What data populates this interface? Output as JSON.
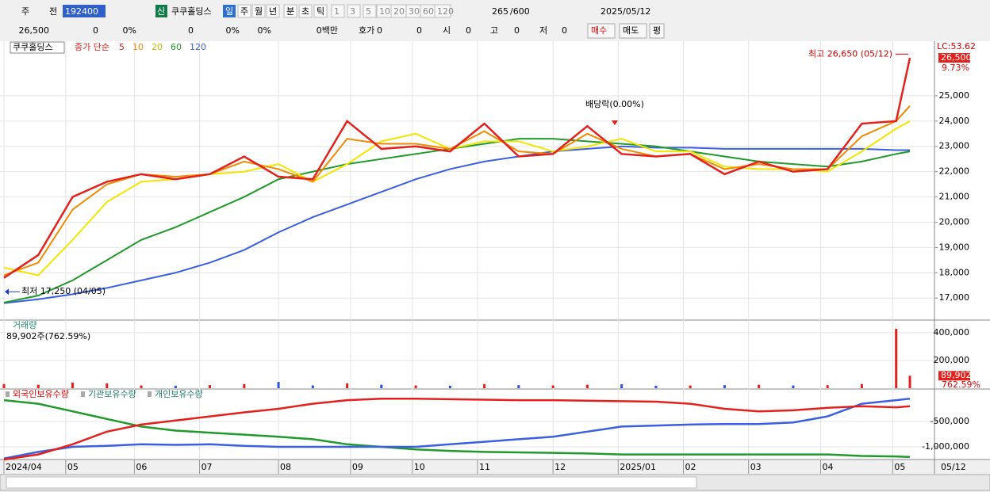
{
  "toolbar": {
    "row1": [
      "주",
      "전",
      "192400",
      "신",
      "쿠쿠홀딩스",
      "일",
      "주",
      "월",
      "년",
      "분",
      "초",
      "틱",
      "1",
      "3",
      "5",
      "10",
      "20",
      "30",
      "60",
      "120",
      "265",
      "/600",
      "2025/05/12"
    ],
    "row2": [
      "26,500",
      "0",
      "0%",
      "0",
      "0%",
      "0%",
      "0백만",
      "호가",
      "0",
      "0",
      "시",
      "0",
      "고",
      "0",
      "저",
      "0",
      "매수",
      "매도",
      "평"
    ]
  },
  "chart_data": [
    {
      "type": "line",
      "name": "쿠쿠홀딩스",
      "legend_title": "종가 단순",
      "x": [
        0,
        10,
        20,
        30,
        40,
        50,
        60,
        70,
        80,
        90,
        100,
        110,
        120,
        130,
        140,
        150,
        160,
        170,
        180,
        190,
        200,
        210,
        220,
        230,
        240,
        250,
        260,
        264
      ],
      "xlim": [
        0,
        264
      ],
      "ylim": [
        16160,
        27160
      ],
      "yticks": [
        {
          "value": 17000,
          "label": "17,000"
        },
        {
          "value": 18000,
          "label": "18,000"
        },
        {
          "value": 19000,
          "label": "19,000"
        },
        {
          "value": 20000,
          "label": "20,000"
        },
        {
          "value": 21000,
          "label": "21,000"
        },
        {
          "value": 22000,
          "label": "22,000"
        },
        {
          "value": 23000,
          "label": "23,000"
        },
        {
          "value": 24000,
          "label": "24,000"
        },
        {
          "value": 25000,
          "label": "25,000"
        }
      ],
      "series": [
        {
          "name": "5",
          "color": "#e3201b",
          "values": [
            17800,
            18700,
            21000,
            21600,
            21900,
            21700,
            21900,
            22600,
            21800,
            21700,
            24000,
            22900,
            23000,
            22800,
            23900,
            22600,
            22700,
            23800,
            22700,
            22600,
            22700,
            21900,
            22400,
            22000,
            22100,
            23900,
            24000,
            26500
          ]
        },
        {
          "name": "10",
          "color": "#f08a00",
          "values": [
            17900,
            18400,
            20500,
            21500,
            21900,
            21800,
            21900,
            22400,
            22100,
            21600,
            23300,
            23100,
            23100,
            22900,
            23600,
            22800,
            22700,
            23500,
            22900,
            22600,
            22700,
            22100,
            22300,
            22100,
            22100,
            23400,
            24000,
            24600
          ]
        },
        {
          "name": "20",
          "color": "#f2e600",
          "values": [
            18200,
            17900,
            19300,
            20800,
            21600,
            21700,
            21900,
            22000,
            22300,
            21600,
            22300,
            23200,
            23500,
            22900,
            23200,
            23200,
            22800,
            23000,
            23300,
            22800,
            22800,
            22200,
            22100,
            22100,
            22000,
            22800,
            23700,
            24000
          ]
        },
        {
          "name": "60",
          "color": "#1f9a2b",
          "values": [
            16820,
            17100,
            17700,
            18500,
            19300,
            19800,
            20400,
            21000,
            21700,
            22000,
            22300,
            22500,
            22700,
            22900,
            23100,
            23300,
            23300,
            23200,
            23100,
            23000,
            22800,
            22600,
            22400,
            22300,
            22200,
            22400,
            22700,
            22800
          ]
        },
        {
          "name": "120",
          "color": "#3a5fe0",
          "values": [
            16800,
            16950,
            17150,
            17400,
            17700,
            18000,
            18400,
            18900,
            19600,
            20200,
            20700,
            21200,
            21700,
            22100,
            22400,
            22600,
            22800,
            22900,
            23000,
            22950,
            22950,
            22900,
            22900,
            22900,
            22900,
            22900,
            22850,
            22850
          ]
        }
      ],
      "high": {
        "label": "최고 26,650 (05/12)",
        "value": 26650,
        "x": 264
      },
      "low": {
        "label": "최저 17,250 (04/05)",
        "value": 17250,
        "x": 0
      },
      "dividend": {
        "label": "배당락(0.00%)",
        "value": 23900,
        "x": 178
      },
      "last": {
        "value": 26500,
        "label": "26,500"
      },
      "change": "9.73%",
      "lc": "LC:53.62"
    },
    {
      "type": "bar",
      "title": "거래량",
      "info": "89,902주(762.59%)",
      "values": [
        30000,
        25000,
        40000,
        35000,
        20000,
        18000,
        22000,
        30000,
        45000,
        20000,
        35000,
        25000,
        20000,
        18000,
        30000,
        22000,
        20000,
        25000,
        28000,
        18000,
        20000,
        22000,
        25000,
        20000,
        22000,
        30000,
        428000,
        89902
      ],
      "ylim": [
        0,
        485000
      ],
      "yticks": [
        {
          "value": 200000,
          "label": "200,000"
        },
        {
          "value": 400000,
          "label": "400,000"
        }
      ],
      "last": {
        "value": 89902,
        "label": "89,902"
      },
      "change": "762.59%"
    },
    {
      "type": "line",
      "ylim": [
        -1250000,
        125000
      ],
      "yticks": [
        {
          "value": -500000,
          "label": "-500,000"
        },
        {
          "value": -1000000,
          "label": "-1,000,000"
        }
      ],
      "series": [
        {
          "name": "외국인보유수량",
          "color": "#e3201b",
          "values": [
            -1250000,
            -1150000,
            -950000,
            -700000,
            -560000,
            -480000,
            -400000,
            -320000,
            -250000,
            -150000,
            -80000,
            -50000,
            -50000,
            -60000,
            -70000,
            -80000,
            -80000,
            -90000,
            -100000,
            -110000,
            -150000,
            -250000,
            -300000,
            -280000,
            -230000,
            -200000,
            -220000,
            -200000
          ]
        },
        {
          "name": "기관보유수량",
          "color": "#3a5fe0",
          "values": [
            -1230000,
            -1100000,
            -1000000,
            -980000,
            -950000,
            -960000,
            -950000,
            -980000,
            -1000000,
            -1000000,
            -1000000,
            -1000000,
            -1000000,
            -950000,
            -900000,
            -850000,
            -800000,
            -700000,
            -600000,
            -580000,
            -560000,
            -550000,
            -550000,
            -520000,
            -400000,
            -150000,
            -80000,
            -50000
          ]
        },
        {
          "name": "개인보유수량",
          "color": "#1f9a2b",
          "values": [
            -80000,
            -150000,
            -300000,
            -450000,
            -600000,
            -680000,
            -720000,
            -760000,
            -800000,
            -850000,
            -950000,
            -1000000,
            -1050000,
            -1080000,
            -1100000,
            -1110000,
            -1120000,
            -1130000,
            -1150000,
            -1150000,
            -1150000,
            -1150000,
            -1150000,
            -1150000,
            -1150000,
            -1180000,
            -1190000,
            -1200000
          ]
        }
      ],
      "xticks": [
        {
          "value": 0,
          "label": "2024/04"
        },
        {
          "value": 18,
          "label": "05"
        },
        {
          "value": 38,
          "label": "06"
        },
        {
          "value": 57,
          "label": "07"
        },
        {
          "value": 80,
          "label": "08"
        },
        {
          "value": 101,
          "label": "09"
        },
        {
          "value": 119,
          "label": "10"
        },
        {
          "value": 138,
          "label": "11"
        },
        {
          "value": 160,
          "label": "12"
        },
        {
          "value": 179,
          "label": "2025/01"
        },
        {
          "value": 198,
          "label": "02"
        },
        {
          "value": 217,
          "label": "03"
        },
        {
          "value": 238,
          "label": "04"
        },
        {
          "value": 259,
          "label": "05"
        }
      ],
      "last_date": "05/12"
    }
  ]
}
